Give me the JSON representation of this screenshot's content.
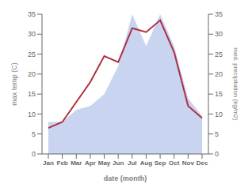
{
  "chart_data": {
    "type": "line",
    "categories": [
      "Jan",
      "Feb",
      "Mar",
      "Apr",
      "May",
      "Jun",
      "Jul",
      "Aug",
      "Sep",
      "Oct",
      "Nov",
      "Dec"
    ],
    "xlabel": "date (month)",
    "ylabel": "max temp (C)",
    "y2label": "med. precipitation (kg/m2)",
    "ylim": [
      0,
      35
    ],
    "yticks": [
      0,
      5,
      10,
      15,
      20,
      25,
      30,
      35
    ],
    "y2lim": [
      0,
      35
    ],
    "y2ticks": [
      0,
      5,
      10,
      15,
      20,
      25,
      30,
      35
    ],
    "grid": false,
    "series": [
      {
        "type": "area",
        "axis": "y2",
        "color": "#c8d4f0",
        "values": [
          8.0,
          8.0,
          11.0,
          12.0,
          15.0,
          22.0,
          35.0,
          27.0,
          35.0,
          27.0,
          14.0,
          9.5
        ]
      },
      {
        "type": "line",
        "axis": "y",
        "color": "#b03040",
        "values": [
          6.5,
          8.0,
          13.0,
          18.0,
          24.5,
          23.0,
          31.5,
          30.5,
          33.5,
          25.5,
          12.0,
          9.0
        ]
      }
    ]
  }
}
